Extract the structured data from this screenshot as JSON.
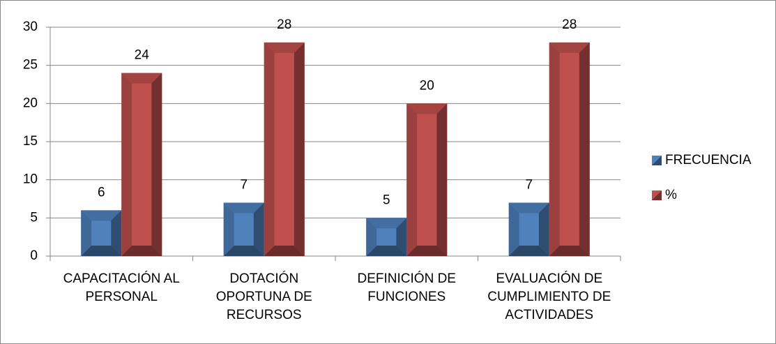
{
  "chart_data": {
    "type": "bar",
    "categories": [
      "CAPACITACIÓN AL PERSONAL",
      "DOTACIÓN OPORTUNA DE RECURSOS",
      "DEFINICIÓN DE FUNCIONES",
      "EVALUACIÓN DE CUMPLIMIENTO DE ACTIVIDADES"
    ],
    "series": [
      {
        "name": "FRECUENCIA",
        "color": "#4f81bd",
        "values": [
          6,
          7,
          5,
          7
        ]
      },
      {
        "name": "%",
        "color": "#c0504d",
        "values": [
          24,
          28,
          20,
          28
        ]
      }
    ],
    "ylim": [
      0,
      30
    ],
    "yticks": [
      0,
      5,
      10,
      15,
      20,
      25,
      30
    ],
    "grid": true,
    "legend": "right"
  }
}
